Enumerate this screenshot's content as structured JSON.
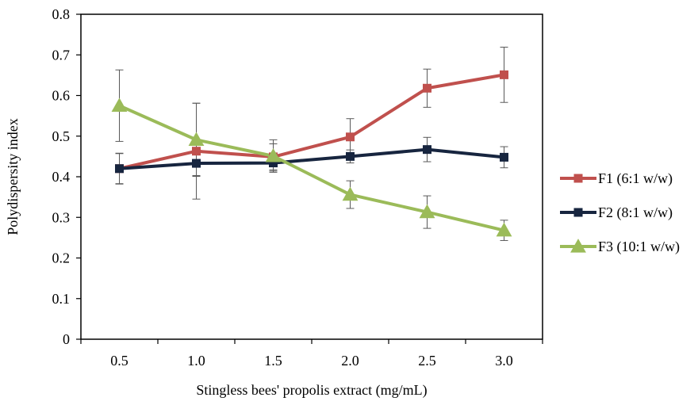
{
  "chart_data": {
    "type": "line",
    "xlabel": "Stingless bees' propolis extract (mg/mL)",
    "ylabel": "Polydispersity index",
    "categories": [
      "0.5",
      "1.0",
      "1.5",
      "2.0",
      "2.5",
      "3.0"
    ],
    "x_ticks": [
      "0.5",
      "1.0",
      "1.5",
      "2.0",
      "2.5",
      "3.0"
    ],
    "y_ticks": [
      "0",
      "0.1",
      "0.2",
      "0.3",
      "0.4",
      "0.5",
      "0.6",
      "0.7",
      "0.8"
    ],
    "ylim": [
      0,
      0.8
    ],
    "grid": false,
    "legend_position": "right",
    "series": [
      {
        "name": "F1 (6:1 w/w)",
        "color": "#c0504d",
        "marker": "square",
        "values": [
          0.42,
          0.463,
          0.449,
          0.498,
          0.618,
          0.651
        ],
        "error": [
          0.037,
          0.118,
          0.032,
          0.045,
          0.047,
          0.068
        ]
      },
      {
        "name": "F2 (8:1 w/w)",
        "color": "#17253f",
        "marker": "square",
        "values": [
          0.42,
          0.433,
          0.434,
          0.45,
          0.467,
          0.448
        ],
        "error": [
          0.038,
          0.03,
          0.02,
          0.016,
          0.03,
          0.026
        ]
      },
      {
        "name": "F3 (10:1 w/w)",
        "color": "#9bbb59",
        "marker": "triangle",
        "values": [
          0.575,
          0.491,
          0.451,
          0.356,
          0.313,
          0.268
        ],
        "error": [
          0.088,
          0.09,
          0.04,
          0.034,
          0.04,
          0.025
        ]
      }
    ]
  }
}
